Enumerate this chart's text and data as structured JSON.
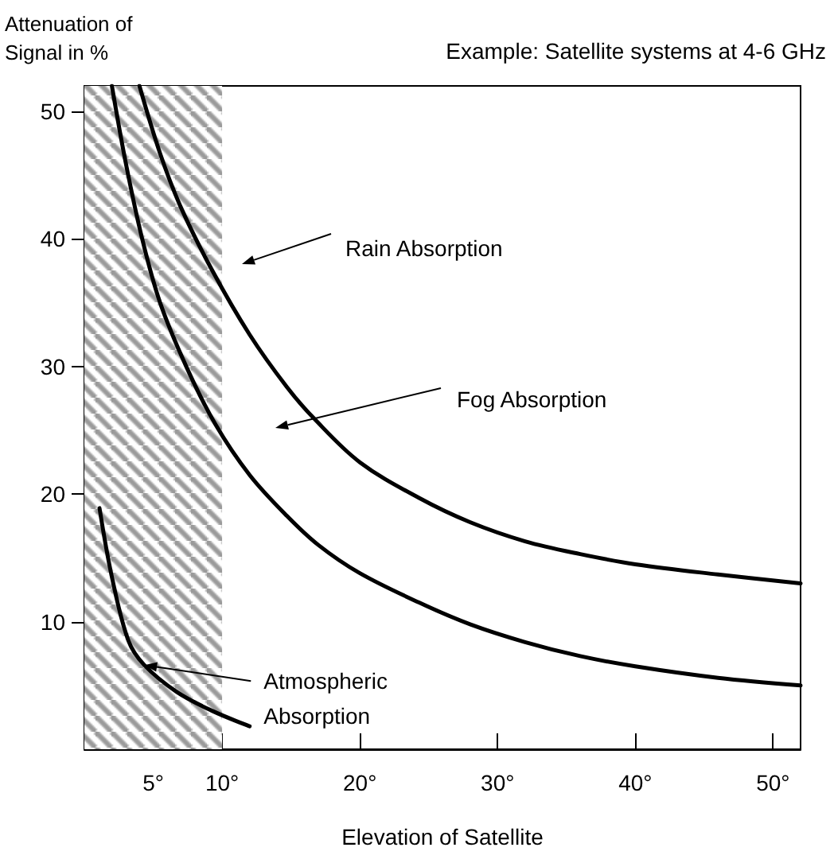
{
  "chart_data": {
    "type": "line",
    "title": "Example: Satellite systems at 4-6 GHz",
    "xlabel": "Elevation of Satellite",
    "ylabel": "Attenuation of\nSignal in %",
    "xlim": [
      0,
      52
    ],
    "ylim": [
      0,
      52
    ],
    "xticks": [
      {
        "value": 5,
        "label": "5°"
      },
      {
        "value": 10,
        "label": "10°"
      },
      {
        "value": 20,
        "label": "20°"
      },
      {
        "value": 30,
        "label": "30°"
      },
      {
        "value": 40,
        "label": "40°"
      },
      {
        "value": 50,
        "label": "50°"
      }
    ],
    "yticks": [
      10,
      20,
      30,
      40,
      50
    ],
    "grid": false,
    "bands": [
      {
        "axis": "x",
        "from": 0,
        "to": 10,
        "color": "#9a9a9a"
      }
    ],
    "series": [
      {
        "color": "#000000",
        "x": [
          4.0,
          5.5,
          7,
          9.3,
          12,
          14.7,
          16.7,
          20,
          24.3,
          28,
          32,
          36,
          40,
          46,
          52
        ],
        "values": [
          52,
          46.7,
          42.5,
          37.5,
          32.5,
          28.4,
          25.9,
          22.5,
          19.7,
          17.8,
          16.3,
          15.3,
          14.5,
          13.7,
          13.0
        ]
      },
      {
        "color": "#000000",
        "x": [
          2.0,
          3,
          4.2,
          5.5,
          7.4,
          9.5,
          12,
          14.7,
          17,
          20,
          24.3,
          28,
          32,
          36,
          40,
          46,
          52
        ],
        "values": [
          52,
          46,
          40,
          35,
          30,
          25.5,
          21.5,
          18.3,
          16,
          13.8,
          11.5,
          9.8,
          8.4,
          7.3,
          6.5,
          5.6,
          5.0
        ]
      },
      {
        "color": "#000000",
        "x": [
          1.1,
          2.0,
          3.2,
          4.35,
          6.7,
          9.3,
          12.0
        ],
        "values": [
          18.9,
          13.5,
          8.5,
          6.6,
          4.5,
          3.0,
          1.8
        ]
      }
    ],
    "annotations": [
      "Rain Absorption",
      "Fog Absorption",
      {
        "text": "Atmospheric\nAbsorption",
        "x": 4.35,
        "y": 6.6
      }
    ]
  }
}
